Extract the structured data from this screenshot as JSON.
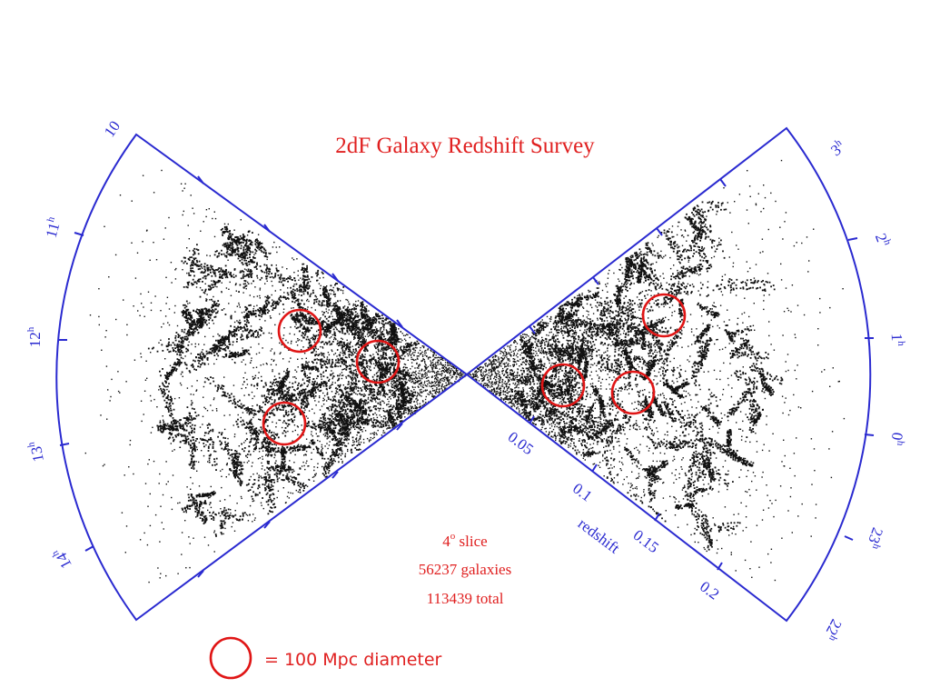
{
  "title": "2dF Galaxy Redshift Survey",
  "info": {
    "slice_prefix": "4",
    "slice_degree": "o",
    "slice_suffix": " slice",
    "galaxies": "56237 galaxies",
    "total": "113439 total"
  },
  "legend": {
    "text": "= 100 Mpc diameter"
  },
  "left_wedge": {
    "ra_labels": [
      {
        "num": "10",
        "sup": ""
      },
      {
        "num": "11",
        "sup": "h"
      },
      {
        "num": "12",
        "sup": "h"
      },
      {
        "num": "13",
        "sup": "h"
      },
      {
        "num": "14",
        "sup": "h"
      }
    ]
  },
  "right_wedge": {
    "ra_labels": [
      {
        "num": "3",
        "sup": "h"
      },
      {
        "num": "2",
        "sup": "h"
      },
      {
        "num": "1",
        "sup": "h"
      },
      {
        "num": "0",
        "sup": "h"
      },
      {
        "num": "23",
        "sup": "h"
      },
      {
        "num": "22",
        "sup": "h"
      }
    ],
    "redshift_ticks": [
      "0.05",
      "0.1",
      "0.15",
      "0.2"
    ],
    "redshift_axis_label": "redshift"
  },
  "colors": {
    "axis": "#2a2ad0",
    "highlight": "#e01515",
    "galaxies": "#111111"
  }
}
